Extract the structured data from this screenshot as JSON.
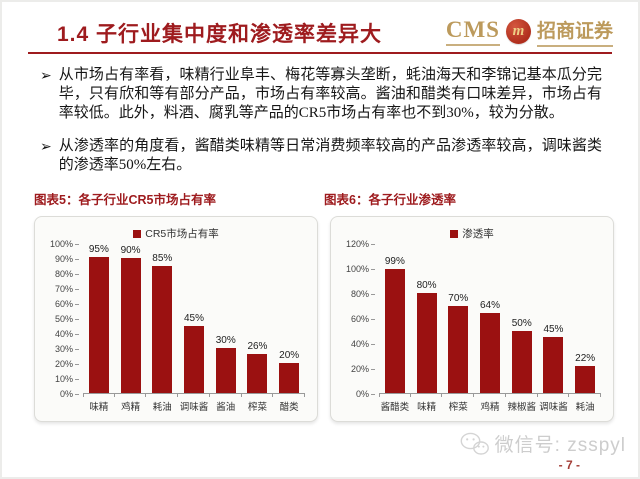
{
  "header": {
    "title": "1.4 子行业集中度和渗透率差异大",
    "logo": {
      "cms": "CMS",
      "monogram": "m",
      "name": "招商证券"
    }
  },
  "bullet_marker": "➢",
  "bullets": [
    "从市场占有率看，味精行业阜丰、梅花等寡头垄断，蚝油海天和李锦记基本瓜分完毕，只有欣和等有部分产品，市场占有率较高。酱油和醋类有口味差异，市场占有率较低。此外，料酒、腐乳等产品的CR5市场占有率也不到30%，较为分散。",
    "从渗透率的角度看，酱醋类味精等日常消费频率较高的产品渗透率较高，调味酱类的渗透率50%左右。"
  ],
  "chart_data": [
    {
      "type": "bar",
      "title": "图表5：各子行业CR5市场占有率",
      "legend": "CR5市场占有率",
      "categories": [
        "味精",
        "鸡精",
        "耗油",
        "调味酱",
        "酱油",
        "榨菜",
        "醋类"
      ],
      "values": [
        95,
        90,
        85,
        45,
        30,
        26,
        20
      ],
      "unit": "%",
      "ylim": [
        0,
        100
      ],
      "ytick_step": 10,
      "grid": false,
      "legend_position": "top-center",
      "bar_color": "#9B1111"
    },
    {
      "type": "bar",
      "title": "图表6：各子行业渗透率",
      "legend": "渗透率",
      "categories": [
        "酱醋类",
        "味精",
        "榨菜",
        "鸡精",
        "辣椒酱",
        "调味酱",
        "耗油"
      ],
      "values": [
        99,
        80,
        70,
        64,
        50,
        45,
        22
      ],
      "unit": "%",
      "ylim": [
        0,
        120
      ],
      "ytick_step": 20,
      "grid": false,
      "legend_position": "top-center",
      "bar_color": "#9B1111"
    }
  ],
  "footer": {
    "watermark": "微信号: zsspyl",
    "page_number": "- 7 -"
  },
  "colors": {
    "brand_red": "#9E1B1E",
    "bar_red": "#9B1111",
    "logo_gold": "#BC9A5C",
    "watermark_gray": "#CDCDCD"
  }
}
